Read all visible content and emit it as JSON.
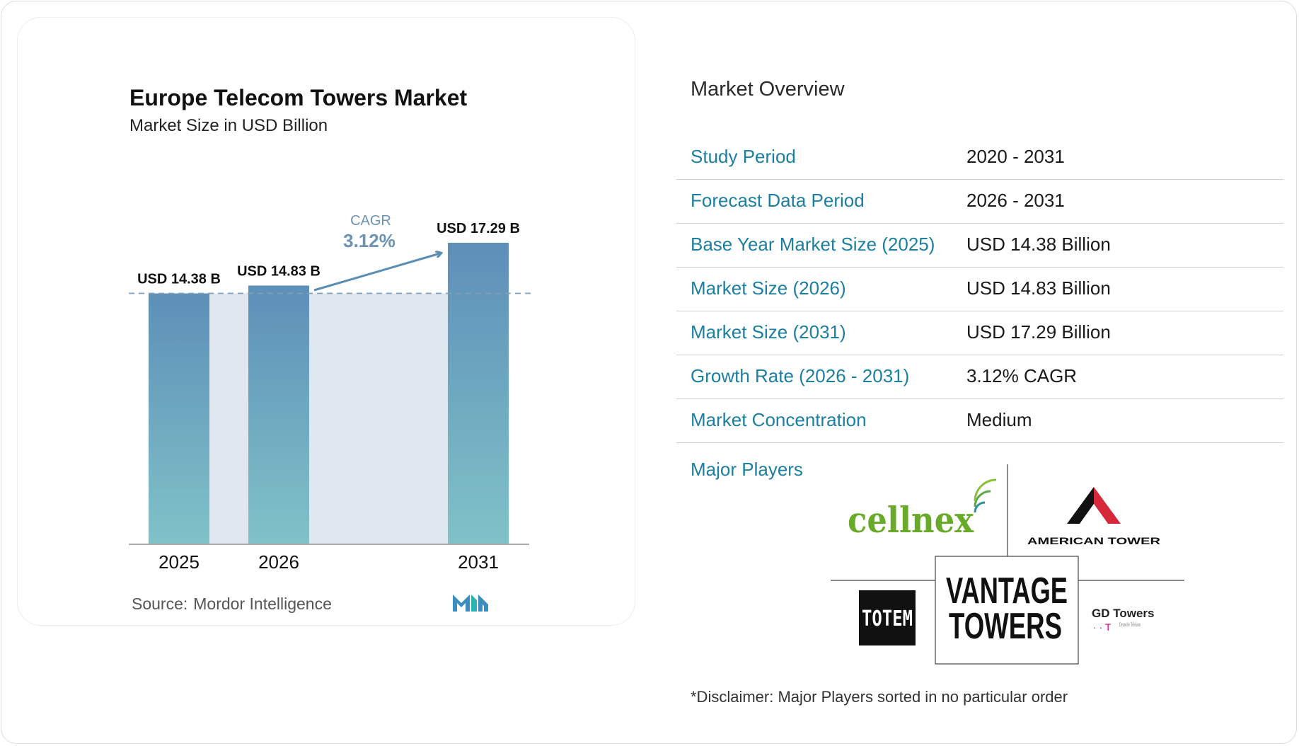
{
  "chart": {
    "title": "Europe Telecom Towers Market",
    "subtitle": "Market Size in USD Billion",
    "cagr_label": "CAGR",
    "cagr_value": "3.12%",
    "source_label": "Source:",
    "source_value": "Mordor Intelligence"
  },
  "chart_data": {
    "type": "bar",
    "categories": [
      "2025",
      "2026",
      "2031"
    ],
    "values": [
      14.38,
      14.83,
      17.29
    ],
    "value_labels": [
      "USD 14.38 B",
      "USD 14.83 B",
      "USD 17.29 B"
    ],
    "title": "Europe Telecom Towers Market",
    "subtitle": "Market Size in USD Billion",
    "xlabel": "",
    "ylabel": "",
    "ylim": [
      0,
      17.29
    ],
    "grid": false,
    "annotations": [
      "CAGR 3.12%"
    ],
    "colors": {
      "bar_top": "#5d8fb8",
      "bar_bottom": "#80c2c8",
      "band": "#dfe8f1",
      "arrow": "#5b8db3",
      "dashed": "#7f9fba"
    }
  },
  "overview": {
    "title": "Market Overview",
    "rows": [
      {
        "label": "Study Period",
        "value": "2020 - 2031"
      },
      {
        "label": "Forecast Data Period",
        "value": "2026 - 2031"
      },
      {
        "label": "Base Year Market Size (2025)",
        "value": "USD 14.38 Billion"
      },
      {
        "label": "Market Size (2026)",
        "value": "USD 14.83 Billion"
      },
      {
        "label": "Market Size (2031)",
        "value": "USD 17.29 Billion"
      },
      {
        "label": "Growth Rate (2026 - 2031)",
        "value": "3.12% CAGR"
      },
      {
        "label": "Market Concentration",
        "value": "Medium"
      }
    ],
    "major_players_label": "Major Players",
    "players": [
      "cellnex",
      "AMERICAN TOWER",
      "TOTEM",
      "VANTAGE TOWERS",
      "GD Towers"
    ],
    "gd_sub": "Deutsche Telekom",
    "disclaimer": "*Disclaimer: Major Players sorted in no particular order"
  },
  "colors": {
    "label_blue": "#1c7fa0",
    "cellnex_green": "#6aaa2a",
    "american_red": "#d6283a",
    "telekom_magenta": "#e20074"
  }
}
